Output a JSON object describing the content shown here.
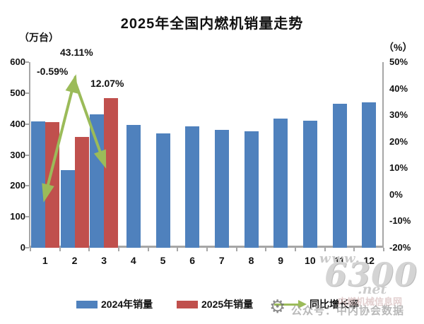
{
  "title": "2025年全国内燃机销量走势",
  "left_axis": {
    "unit": "（万台）",
    "ticks": [
      "600",
      "500",
      "400",
      "300",
      "200",
      "100",
      "0"
    ],
    "min": 0,
    "max": 600
  },
  "right_axis": {
    "unit": "（%）",
    "ticks": [
      "50%",
      "40%",
      "30%",
      "20%",
      "10%",
      "0%",
      "-10%",
      "-20%"
    ],
    "min": -20,
    "max": 50
  },
  "chart_data": {
    "type": "bar",
    "subtype": "grouped bars with line overlay (dual axis combo)",
    "title": "2025年全国内燃机销量走势",
    "categories": [
      "1",
      "2",
      "3",
      "4",
      "5",
      "6",
      "7",
      "8",
      "9",
      "10",
      "11",
      "12"
    ],
    "xlabel": "",
    "ylabel_left": "（万台）",
    "ylabel_right": "（%）",
    "ylim_left": [
      0,
      600
    ],
    "ylim_right": [
      -20,
      50
    ],
    "grid": false,
    "legend_position": "bottom",
    "series": [
      {
        "name": "2024年销量",
        "type": "bar",
        "axis": "left",
        "color": "#4F81BD",
        "values": [
          409,
          250,
          432,
          397,
          370,
          392,
          380,
          377,
          417,
          410,
          465,
          471
        ]
      },
      {
        "name": "2025年销量",
        "type": "bar",
        "axis": "left",
        "color": "#C0504D",
        "values": [
          406,
          358,
          484,
          null,
          null,
          null,
          null,
          null,
          null,
          null,
          null,
          null
        ]
      },
      {
        "name": "同比增长率",
        "type": "line",
        "axis": "right",
        "color": "#9BBB59",
        "values": [
          -0.59,
          43.11,
          12.07,
          null,
          null,
          null,
          null,
          null,
          null,
          null,
          null,
          null
        ],
        "point_labels": [
          "-0.59%",
          "43.11%",
          "12.07%"
        ]
      }
    ]
  },
  "legend": {
    "items": [
      {
        "label": "2024年销量",
        "swatch": "bar",
        "color": "#4F81BD"
      },
      {
        "label": "2025年销量",
        "swatch": "bar",
        "color": "#C0504D"
      },
      {
        "label": "同比增长率",
        "swatch": "line-arrow",
        "color": "#9BBB59"
      }
    ]
  },
  "watermark": {
    "www": "www.",
    "big": "6300",
    "net": ".net",
    "site": "内燃机械信息网",
    "account": "公众号：中内协会数据",
    "gear_glyph": "⚙"
  },
  "colors": {
    "bar_2024": "#4F81BD",
    "bar_2025": "#C0504D",
    "growth_line": "#9BBB59",
    "axis": "#a6a6a6",
    "text": "#111111",
    "watermark": "#cfcfcf"
  }
}
